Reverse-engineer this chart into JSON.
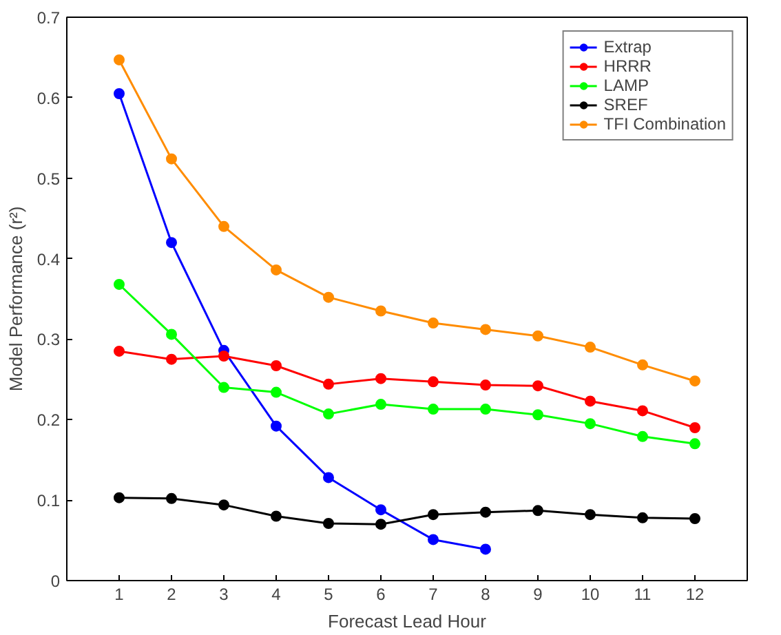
{
  "chart_data": {
    "type": "line",
    "xlabel": "Forecast Lead Hour",
    "ylabel": "Model Performance (r²)",
    "x": [
      1,
      2,
      3,
      4,
      5,
      6,
      7,
      8,
      9,
      10,
      11,
      12
    ],
    "xlim": [
      0,
      13
    ],
    "xticks": [
      1,
      2,
      3,
      4,
      5,
      6,
      7,
      8,
      9,
      10,
      11,
      12
    ],
    "ylim": [
      0,
      0.7
    ],
    "yticks": [
      0,
      0.1,
      0.2,
      0.3,
      0.4,
      0.5,
      0.6,
      0.7
    ],
    "grid": false,
    "legend": "top right",
    "marker": "circle",
    "line_style": "solid",
    "series": [
      {
        "name": "Extrap",
        "color": "#0000ff",
        "values": [
          0.605,
          0.42,
          0.286,
          0.192,
          0.128,
          0.088,
          0.051,
          0.039,
          null,
          null,
          null,
          null
        ]
      },
      {
        "name": "HRRR",
        "color": "#ff0000",
        "values": [
          0.285,
          0.275,
          0.279,
          0.267,
          0.244,
          0.251,
          0.247,
          0.243,
          0.242,
          0.223,
          0.211,
          0.19
        ]
      },
      {
        "name": "LAMP",
        "color": "#00ff00",
        "values": [
          0.368,
          0.306,
          0.24,
          0.234,
          0.207,
          0.219,
          0.213,
          0.213,
          0.206,
          0.195,
          0.179,
          0.17
        ]
      },
      {
        "name": "SREF",
        "color": "#000000",
        "values": [
          0.103,
          0.102,
          0.094,
          0.08,
          0.071,
          0.07,
          0.082,
          0.085,
          0.087,
          0.082,
          0.078,
          0.077
        ]
      },
      {
        "name": "TFI Combination",
        "color": "#ff8c00",
        "values": [
          0.647,
          0.524,
          0.44,
          0.386,
          0.352,
          0.335,
          0.32,
          0.312,
          0.304,
          0.29,
          0.268,
          0.248
        ]
      }
    ]
  }
}
